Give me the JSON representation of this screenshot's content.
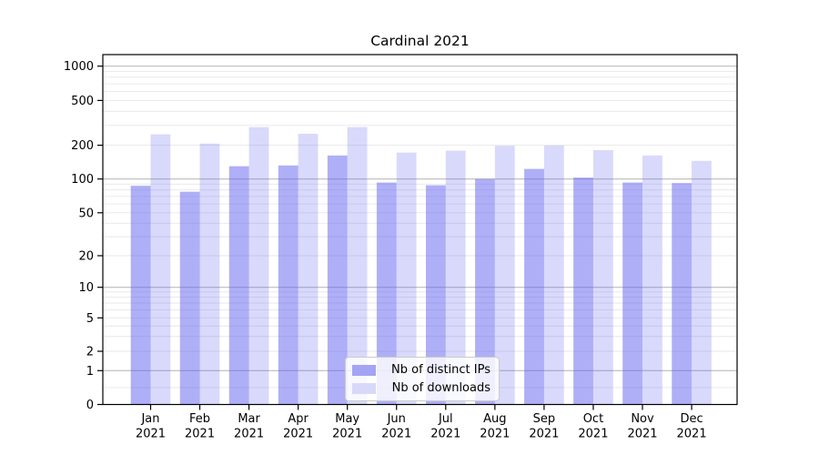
{
  "chart_data": {
    "type": "bar",
    "title": "Cardinal 2021",
    "months": [
      "Jan",
      "Feb",
      "Mar",
      "Apr",
      "May",
      "Jun",
      "Jul",
      "Aug",
      "Sep",
      "Oct",
      "Nov",
      "Dec"
    ],
    "year": "2021",
    "categories": [
      "Jan 2021",
      "Feb 2021",
      "Mar 2021",
      "Apr 2021",
      "May 2021",
      "Jun 2021",
      "Jul 2021",
      "Aug 2021",
      "Sep 2021",
      "Oct 2021",
      "Nov 2021",
      "Dec 2021"
    ],
    "series": [
      {
        "name": "Nb of distinct IPs",
        "color": "#a4a4f4",
        "values": [
          87,
          77,
          130,
          132,
          162,
          93,
          88,
          100,
          123,
          103,
          93,
          92
        ]
      },
      {
        "name": "Nb of downloads",
        "color": "#d8d8f9",
        "values": [
          250,
          207,
          290,
          253,
          290,
          172,
          179,
          198,
          199,
          181,
          162,
          145
        ]
      }
    ],
    "y_axis": {
      "scale": "log-like (0 shown at baseline)",
      "ticks": [
        0,
        1,
        2,
        5,
        10,
        20,
        50,
        100,
        200,
        500,
        1000
      ],
      "ylim": [
        0,
        1100
      ]
    },
    "x_axis": {
      "tick_label_line2": "2021"
    },
    "grid": {
      "major_color": "#b2b2b2",
      "minor_color": "#e7e7e7"
    },
    "legend": {
      "position": "lower center"
    }
  }
}
